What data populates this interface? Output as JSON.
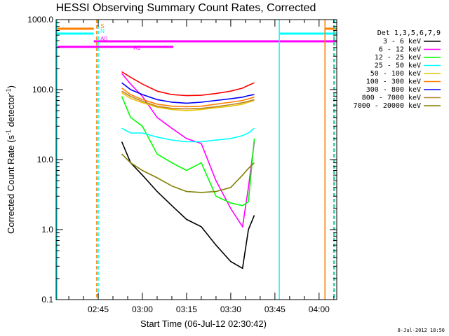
{
  "chart_data": {
    "type": "line",
    "title": "HESSI Observing Summary Count Rates, Corrected",
    "xlabel": "Start Time (06-Jul-12 02:30:42)",
    "ylabel": "Corrected Count Rate (s",
    "ylabel_sup1": "-1",
    "ylabel_mid": " detector",
    "ylabel_sup2": "-1",
    "ylabel_end": ")",
    "date_stamp": "8-Jul-2012 18:56",
    "yscale": "log",
    "ylim": [
      0.1,
      1000
    ],
    "xlim": [
      "02:30:42",
      "04:06:00"
    ],
    "x_ticks": [
      {
        "t": "02:45",
        "label": "02:45"
      },
      {
        "t": "03:00",
        "label": "03:00"
      },
      {
        "t": "03:15",
        "label": "03:15"
      },
      {
        "t": "03:30",
        "label": "03:30"
      },
      {
        "t": "03:45",
        "label": "03:45"
      },
      {
        "t": "04:00",
        "label": "04:00"
      }
    ],
    "y_ticks": [
      {
        "v": 0.1,
        "label": "0.1"
      },
      {
        "v": 1,
        "label": "1.0"
      },
      {
        "v": 10,
        "label": "10.0"
      },
      {
        "v": 100,
        "label": "100.0"
      },
      {
        "v": 1000,
        "label": "1000.0"
      }
    ],
    "legend_title": "Det 1,3,5,6,7,9",
    "legend_position": "right",
    "x": [
      "02:53",
      "02:56",
      "03:00",
      "03:05",
      "03:10",
      "03:15",
      "03:20",
      "03:25",
      "03:30",
      "03:34",
      "03:36",
      "03:38"
    ],
    "series": [
      {
        "name": "3 - 6 keV",
        "color": "#000000",
        "values": [
          18,
          9,
          6,
          3.5,
          2.2,
          1.4,
          1.1,
          0.6,
          0.35,
          0.28,
          1.0,
          1.6
        ]
      },
      {
        "name": "6 - 12 keV",
        "color": "#ff00ff",
        "values": [
          170,
          120,
          80,
          40,
          28,
          20,
          17,
          5,
          2,
          1.1,
          4,
          18
        ]
      },
      {
        "name": "12 - 25 keV",
        "color": "#00ff00",
        "values": [
          80,
          40,
          30,
          12,
          9,
          7,
          9,
          3,
          2.4,
          2.2,
          2.5,
          20
        ]
      },
      {
        "name": "25 - 50 keV",
        "color": "#00ffff",
        "values": [
          28,
          24,
          24,
          21,
          19,
          18,
          18,
          19,
          20,
          22,
          24,
          28
        ]
      },
      {
        "name": "50 - 100 keV",
        "color": "#e8c400",
        "values": [
          90,
          75,
          65,
          56,
          52,
          50,
          52,
          55,
          58,
          62,
          66,
          70
        ]
      },
      {
        "name": "100 - 300 keV",
        "color": "#ff7f00",
        "values": [
          105,
          85,
          72,
          62,
          58,
          57,
          58,
          62,
          66,
          70,
          74,
          78
        ]
      },
      {
        "name": "300 - 800 keV",
        "color": "#0000ff",
        "values": [
          125,
          100,
          85,
          72,
          66,
          64,
          66,
          70,
          74,
          78,
          82,
          85
        ]
      },
      {
        "name": "800 - 7000 keV",
        "color": "#b8862b",
        "values": [
          95,
          80,
          68,
          58,
          54,
          53,
          54,
          57,
          61,
          65,
          68,
          72
        ]
      },
      {
        "name": "7000 - 20000 keV",
        "color": "#7f7f00",
        "values": [
          12,
          9,
          7,
          5.5,
          4.2,
          3.5,
          3.4,
          3.5,
          4.0,
          6.0,
          7.5,
          9.0
        ]
      },
      {
        "name": "",
        "color": "#ff0000",
        "values": [
          180,
          150,
          120,
          95,
          85,
          82,
          83,
          88,
          95,
          105,
          115,
          125
        ]
      }
    ],
    "flag_bars": [
      {
        "label": "S",
        "color": "#ff7f00",
        "segments": [
          [
            "02:30:42",
            "02:43:30"
          ],
          [
            "04:02:00",
            "04:06:00"
          ]
        ]
      },
      {
        "label": "N",
        "color": "#00ffff",
        "segments": [
          [
            "02:30:42",
            "02:43:30"
          ],
          [
            "03:46:30",
            "04:06:00"
          ]
        ]
      },
      {
        "label": "A0",
        "color": "#ff00ff",
        "segments": [
          [
            "02:43:30",
            "04:06:00"
          ]
        ]
      },
      {
        "label": "A1",
        "color": "#ff00ff",
        "segments": [
          [
            "02:30:42",
            "03:10:30"
          ]
        ]
      }
    ],
    "vertical_lines": [
      {
        "t": "02:31:00",
        "color": "#00ffff",
        "style": "solid"
      },
      {
        "t": "02:44:30",
        "color": "#ff7f00",
        "style": "dashed"
      },
      {
        "t": "02:45:00",
        "color": "#00ffff",
        "style": "dashed"
      },
      {
        "t": "03:46:30",
        "color": "#00ffff",
        "style": "solid"
      },
      {
        "t": "04:02:00",
        "color": "#ff7f00",
        "style": "solid"
      },
      {
        "t": "04:05:00",
        "color": "#ff7f00",
        "style": "dashed"
      },
      {
        "t": "04:05:20",
        "color": "#00ffff",
        "style": "dashed"
      }
    ]
  }
}
